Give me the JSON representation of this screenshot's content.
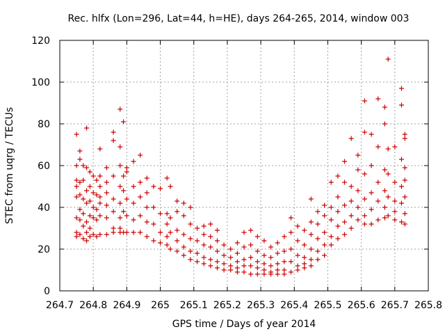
{
  "chart_data": {
    "type": "scatter",
    "title": "Rec. hlfx (Lon=296, Lat=44, h=HE), days 264-265, 2014, window 003",
    "xlabel": "GPS time / Days of year 2014",
    "ylabel": "STEC from uqrg / TECUs",
    "xlim": [
      264.7,
      265.8
    ],
    "ylim": [
      0,
      120
    ],
    "x_ticks": [
      264.7,
      264.8,
      264.9,
      265,
      265.1,
      265.2,
      265.3,
      265.4,
      265.5,
      265.6,
      265.7,
      265.8
    ],
    "x_tick_labels": [
      "264.7",
      "264.8",
      "264.9",
      "265",
      "265.1",
      "265.2",
      "265.3",
      "265.4",
      "265.5",
      "265.6",
      "265.7",
      "265.8"
    ],
    "y_ticks": [
      0,
      20,
      40,
      60,
      80,
      100,
      120
    ],
    "y_tick_labels": [
      "0",
      "20",
      "40",
      "60",
      "80",
      "100",
      "120"
    ],
    "grid": true,
    "marker": "+",
    "color": "#cc0000",
    "points": [
      [
        264.75,
        75
      ],
      [
        264.75,
        60
      ],
      [
        264.75,
        53
      ],
      [
        264.75,
        50
      ],
      [
        264.75,
        45
      ],
      [
        264.75,
        35
      ],
      [
        264.75,
        28
      ],
      [
        264.75,
        26
      ],
      [
        264.76,
        67
      ],
      [
        264.76,
        63
      ],
      [
        264.76,
        52
      ],
      [
        264.76,
        46
      ],
      [
        264.76,
        39
      ],
      [
        264.76,
        34
      ],
      [
        264.76,
        27
      ],
      [
        264.77,
        60
      ],
      [
        264.77,
        53
      ],
      [
        264.77,
        44
      ],
      [
        264.77,
        37
      ],
      [
        264.77,
        31
      ],
      [
        264.77,
        25
      ],
      [
        264.78,
        78
      ],
      [
        264.78,
        59
      ],
      [
        264.78,
        48
      ],
      [
        264.78,
        42
      ],
      [
        264.78,
        33
      ],
      [
        264.78,
        28
      ],
      [
        264.78,
        24
      ],
      [
        264.79,
        57
      ],
      [
        264.79,
        50
      ],
      [
        264.79,
        43
      ],
      [
        264.79,
        36
      ],
      [
        264.79,
        30
      ],
      [
        264.79,
        26
      ],
      [
        264.8,
        55
      ],
      [
        264.8,
        47
      ],
      [
        264.8,
        40
      ],
      [
        264.8,
        35
      ],
      [
        264.8,
        27
      ],
      [
        264.81,
        53
      ],
      [
        264.81,
        46
      ],
      [
        264.81,
        39
      ],
      [
        264.81,
        34
      ],
      [
        264.81,
        26
      ],
      [
        264.82,
        68
      ],
      [
        264.82,
        55
      ],
      [
        264.82,
        50
      ],
      [
        264.82,
        45
      ],
      [
        264.82,
        42
      ],
      [
        264.82,
        36
      ],
      [
        264.82,
        27
      ],
      [
        264.84,
        59
      ],
      [
        264.84,
        52
      ],
      [
        264.84,
        47
      ],
      [
        264.84,
        41
      ],
      [
        264.84,
        35
      ],
      [
        264.84,
        27
      ],
      [
        264.86,
        76
      ],
      [
        264.86,
        72
      ],
      [
        264.86,
        55
      ],
      [
        264.86,
        44
      ],
      [
        264.86,
        38
      ],
      [
        264.86,
        30
      ],
      [
        264.86,
        28
      ],
      [
        264.88,
        87
      ],
      [
        264.88,
        69
      ],
      [
        264.88,
        60
      ],
      [
        264.88,
        50
      ],
      [
        264.88,
        42
      ],
      [
        264.88,
        35
      ],
      [
        264.88,
        30
      ],
      [
        264.88,
        28
      ],
      [
        264.89,
        81
      ],
      [
        264.89,
        55
      ],
      [
        264.89,
        48
      ],
      [
        264.89,
        38
      ],
      [
        264.89,
        28
      ],
      [
        264.9,
        59
      ],
      [
        264.9,
        57
      ],
      [
        264.9,
        44
      ],
      [
        264.9,
        36
      ],
      [
        264.9,
        28
      ],
      [
        264.92,
        62
      ],
      [
        264.92,
        50
      ],
      [
        264.92,
        42
      ],
      [
        264.92,
        34
      ],
      [
        264.92,
        28
      ],
      [
        264.94,
        65
      ],
      [
        264.94,
        52
      ],
      [
        264.94,
        45
      ],
      [
        264.94,
        36
      ],
      [
        264.94,
        28
      ],
      [
        264.96,
        54
      ],
      [
        264.96,
        47
      ],
      [
        264.96,
        40
      ],
      [
        264.96,
        33
      ],
      [
        264.96,
        26
      ],
      [
        264.98,
        50
      ],
      [
        264.98,
        40
      ],
      [
        264.98,
        32
      ],
      [
        264.98,
        24
      ],
      [
        265.0,
        49
      ],
      [
        265.0,
        37
      ],
      [
        265.0,
        28
      ],
      [
        265.0,
        23
      ],
      [
        265.02,
        54
      ],
      [
        265.02,
        37
      ],
      [
        265.02,
        32
      ],
      [
        265.02,
        26
      ],
      [
        265.02,
        22
      ],
      [
        265.03,
        50
      ],
      [
        265.03,
        35
      ],
      [
        265.03,
        28
      ],
      [
        265.03,
        20
      ],
      [
        265.05,
        43
      ],
      [
        265.05,
        38
      ],
      [
        265.05,
        29
      ],
      [
        265.05,
        24
      ],
      [
        265.05,
        19
      ],
      [
        265.07,
        42
      ],
      [
        265.07,
        36
      ],
      [
        265.07,
        27
      ],
      [
        265.07,
        21
      ],
      [
        265.07,
        17
      ],
      [
        265.09,
        40
      ],
      [
        265.09,
        32
      ],
      [
        265.09,
        25
      ],
      [
        265.09,
        19
      ],
      [
        265.09,
        15
      ],
      [
        265.11,
        30
      ],
      [
        265.11,
        24
      ],
      [
        265.11,
        18
      ],
      [
        265.11,
        14
      ],
      [
        265.13,
        31
      ],
      [
        265.13,
        27
      ],
      [
        265.13,
        22
      ],
      [
        265.13,
        16
      ],
      [
        265.13,
        13
      ],
      [
        265.15,
        32
      ],
      [
        265.15,
        26
      ],
      [
        265.15,
        21
      ],
      [
        265.15,
        15
      ],
      [
        265.15,
        12
      ],
      [
        265.17,
        29
      ],
      [
        265.17,
        24
      ],
      [
        265.17,
        19
      ],
      [
        265.17,
        14
      ],
      [
        265.17,
        11
      ],
      [
        265.19,
        22
      ],
      [
        265.19,
        17
      ],
      [
        265.19,
        13
      ],
      [
        265.19,
        10
      ],
      [
        265.21,
        20
      ],
      [
        265.21,
        16
      ],
      [
        265.21,
        12
      ],
      [
        265.21,
        10
      ],
      [
        265.23,
        23
      ],
      [
        265.23,
        18
      ],
      [
        265.23,
        14
      ],
      [
        265.23,
        11
      ],
      [
        265.23,
        9
      ],
      [
        265.25,
        28
      ],
      [
        265.25,
        21
      ],
      [
        265.25,
        15
      ],
      [
        265.25,
        12
      ],
      [
        265.25,
        9
      ],
      [
        265.27,
        29
      ],
      [
        265.27,
        22
      ],
      [
        265.27,
        16
      ],
      [
        265.27,
        12
      ],
      [
        265.27,
        8
      ],
      [
        265.29,
        26
      ],
      [
        265.29,
        19
      ],
      [
        265.29,
        14
      ],
      [
        265.29,
        11
      ],
      [
        265.29,
        8
      ],
      [
        265.31,
        24
      ],
      [
        265.31,
        17
      ],
      [
        265.31,
        13
      ],
      [
        265.31,
        10
      ],
      [
        265.31,
        8
      ],
      [
        265.33,
        21
      ],
      [
        265.33,
        16
      ],
      [
        265.33,
        12
      ],
      [
        265.33,
        9
      ],
      [
        265.33,
        8
      ],
      [
        265.35,
        23
      ],
      [
        265.35,
        18
      ],
      [
        265.35,
        13
      ],
      [
        265.35,
        10
      ],
      [
        265.35,
        8
      ],
      [
        265.37,
        26
      ],
      [
        265.37,
        19
      ],
      [
        265.37,
        14
      ],
      [
        265.37,
        10
      ],
      [
        265.37,
        8
      ],
      [
        265.39,
        35
      ],
      [
        265.39,
        28
      ],
      [
        265.39,
        20
      ],
      [
        265.39,
        14
      ],
      [
        265.39,
        9
      ],
      [
        265.41,
        31
      ],
      [
        265.41,
        24
      ],
      [
        265.41,
        17
      ],
      [
        265.41,
        12
      ],
      [
        265.41,
        10
      ],
      [
        265.43,
        29
      ],
      [
        265.43,
        22
      ],
      [
        265.43,
        16
      ],
      [
        265.43,
        13
      ],
      [
        265.43,
        11
      ],
      [
        265.45,
        44
      ],
      [
        265.45,
        33
      ],
      [
        265.45,
        27
      ],
      [
        265.45,
        20
      ],
      [
        265.45,
        15
      ],
      [
        265.45,
        12
      ],
      [
        265.47,
        38
      ],
      [
        265.47,
        32
      ],
      [
        265.47,
        25
      ],
      [
        265.47,
        19
      ],
      [
        265.47,
        15
      ],
      [
        265.49,
        41
      ],
      [
        265.49,
        36
      ],
      [
        265.49,
        28
      ],
      [
        265.49,
        22
      ],
      [
        265.49,
        17
      ],
      [
        265.51,
        52
      ],
      [
        265.51,
        40
      ],
      [
        265.51,
        34
      ],
      [
        265.51,
        26
      ],
      [
        265.51,
        22
      ],
      [
        265.53,
        55
      ],
      [
        265.53,
        45
      ],
      [
        265.53,
        38
      ],
      [
        265.53,
        31
      ],
      [
        265.53,
        25
      ],
      [
        265.55,
        62
      ],
      [
        265.55,
        52
      ],
      [
        265.55,
        41
      ],
      [
        265.55,
        33
      ],
      [
        265.55,
        27
      ],
      [
        265.57,
        73
      ],
      [
        265.57,
        50
      ],
      [
        265.57,
        43
      ],
      [
        265.57,
        36
      ],
      [
        265.57,
        30
      ],
      [
        265.59,
        65
      ],
      [
        265.59,
        58
      ],
      [
        265.59,
        48
      ],
      [
        265.59,
        40
      ],
      [
        265.59,
        34
      ],
      [
        265.61,
        91
      ],
      [
        265.61,
        76
      ],
      [
        265.61,
        56
      ],
      [
        265.61,
        44
      ],
      [
        265.61,
        36
      ],
      [
        265.61,
        32
      ],
      [
        265.63,
        75
      ],
      [
        265.63,
        60
      ],
      [
        265.63,
        47
      ],
      [
        265.63,
        39
      ],
      [
        265.63,
        32
      ],
      [
        265.65,
        92
      ],
      [
        265.65,
        69
      ],
      [
        265.65,
        52
      ],
      [
        265.65,
        43
      ],
      [
        265.65,
        34
      ],
      [
        265.67,
        88
      ],
      [
        265.67,
        80
      ],
      [
        265.67,
        58
      ],
      [
        265.67,
        48
      ],
      [
        265.67,
        40
      ],
      [
        265.67,
        35
      ],
      [
        265.68,
        111
      ],
      [
        265.68,
        68
      ],
      [
        265.68,
        56
      ],
      [
        265.68,
        45
      ],
      [
        265.68,
        36
      ],
      [
        265.7,
        69
      ],
      [
        265.7,
        52
      ],
      [
        265.7,
        43
      ],
      [
        265.7,
        38
      ],
      [
        265.7,
        34
      ],
      [
        265.72,
        97
      ],
      [
        265.72,
        89
      ],
      [
        265.72,
        63
      ],
      [
        265.72,
        50
      ],
      [
        265.72,
        42
      ],
      [
        265.72,
        33
      ],
      [
        265.73,
        75
      ],
      [
        265.73,
        73
      ],
      [
        265.73,
        59
      ],
      [
        265.73,
        53
      ],
      [
        265.73,
        45
      ],
      [
        265.73,
        37
      ],
      [
        265.73,
        32
      ]
    ]
  }
}
